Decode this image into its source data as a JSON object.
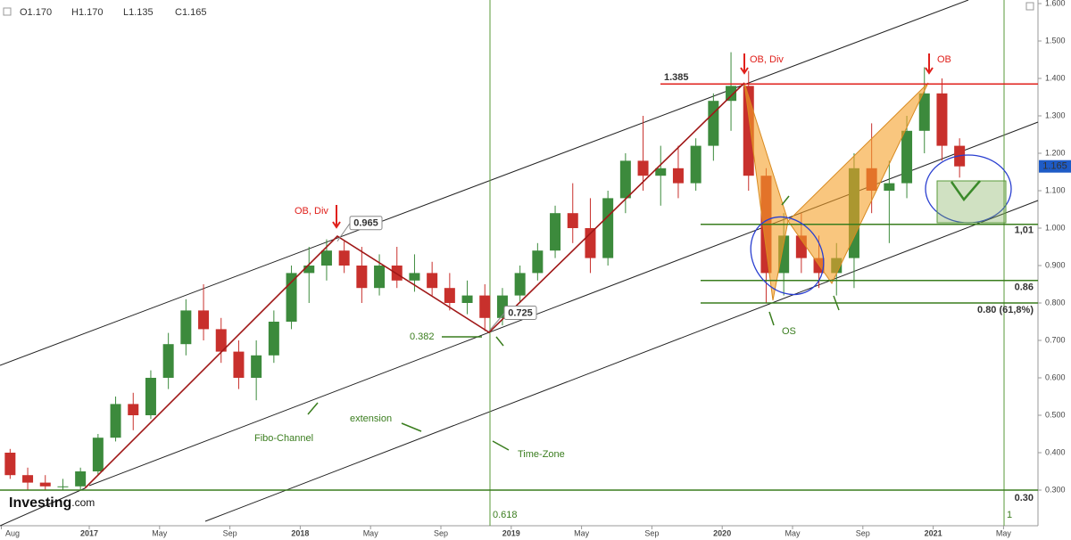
{
  "chart_data": {
    "type": "candlestick",
    "header": [
      "O1.170",
      "H1.170",
      "L1.135",
      "C1.165"
    ],
    "brand": [
      "Investing",
      ".com"
    ],
    "last_price": 1.165,
    "x": [
      "2016-08",
      "2016-09",
      "2016-10",
      "2016-11",
      "2016-12",
      "2017-01",
      "2017-02",
      "2017-03",
      "2017-04",
      "2017-05",
      "2017-06",
      "2017-07",
      "2017-08",
      "2017-09",
      "2017-10",
      "2017-11",
      "2017-12",
      "2018-01",
      "2018-02",
      "2018-03",
      "2018-04",
      "2018-05",
      "2018-06",
      "2018-07",
      "2018-08",
      "2018-09",
      "2018-10",
      "2018-11",
      "2018-12",
      "2019-01",
      "2019-02",
      "2019-03",
      "2019-04",
      "2019-05",
      "2019-06",
      "2019-07",
      "2019-08",
      "2019-09",
      "2019-10",
      "2019-11",
      "2019-12",
      "2020-01",
      "2020-02",
      "2020-03",
      "2020-04",
      "2020-05",
      "2020-06",
      "2020-07",
      "2020-08",
      "2020-09",
      "2020-10",
      "2020-11",
      "2020-12",
      "2021-01",
      "2021-02"
    ],
    "open": [
      0.4,
      0.34,
      0.32,
      0.31,
      0.31,
      0.35,
      0.44,
      0.53,
      0.5,
      0.6,
      0.69,
      0.78,
      0.73,
      0.67,
      0.6,
      0.66,
      0.75,
      0.88,
      0.9,
      0.94,
      0.9,
      0.84,
      0.9,
      0.86,
      0.88,
      0.84,
      0.8,
      0.82,
      0.76,
      0.82,
      0.88,
      0.94,
      1.04,
      1.0,
      0.92,
      1.08,
      1.18,
      1.14,
      1.16,
      1.12,
      1.22,
      1.34,
      1.38,
      1.14,
      0.88,
      0.98,
      0.92,
      0.88,
      0.92,
      1.16,
      1.1,
      1.12,
      1.26,
      1.36,
      1.22
    ],
    "high": [
      0.41,
      0.36,
      0.34,
      0.33,
      0.36,
      0.45,
      0.55,
      0.56,
      0.62,
      0.72,
      0.81,
      0.85,
      0.76,
      0.7,
      0.7,
      0.78,
      0.9,
      0.95,
      0.97,
      0.965,
      0.95,
      0.93,
      0.95,
      0.93,
      0.91,
      0.88,
      0.86,
      0.85,
      0.84,
      0.9,
      0.96,
      1.06,
      1.12,
      1.08,
      1.1,
      1.2,
      1.3,
      1.22,
      1.22,
      1.24,
      1.36,
      1.47,
      1.42,
      1.16,
      1.04,
      1.04,
      0.98,
      0.96,
      1.2,
      1.28,
      1.18,
      1.3,
      1.43,
      1.4,
      1.24
    ],
    "low": [
      0.33,
      0.3,
      0.3,
      0.3,
      0.3,
      0.34,
      0.43,
      0.46,
      0.49,
      0.57,
      0.66,
      0.7,
      0.64,
      0.57,
      0.54,
      0.64,
      0.73,
      0.8,
      0.86,
      0.88,
      0.8,
      0.82,
      0.84,
      0.83,
      0.82,
      0.78,
      0.77,
      0.725,
      0.74,
      0.8,
      0.86,
      0.92,
      0.96,
      0.88,
      0.9,
      1.04,
      1.1,
      1.06,
      1.08,
      1.1,
      1.18,
      1.26,
      1.1,
      0.8,
      0.82,
      0.88,
      0.84,
      0.82,
      0.84,
      1.04,
      0.96,
      1.08,
      1.2,
      1.18,
      1.135
    ],
    "close": [
      0.34,
      0.32,
      0.31,
      0.31,
      0.35,
      0.44,
      0.53,
      0.5,
      0.6,
      0.69,
      0.78,
      0.73,
      0.67,
      0.6,
      0.66,
      0.75,
      0.88,
      0.9,
      0.94,
      0.9,
      0.84,
      0.9,
      0.86,
      0.88,
      0.84,
      0.8,
      0.82,
      0.76,
      0.82,
      0.88,
      0.94,
      1.04,
      1.0,
      0.92,
      1.08,
      1.18,
      1.14,
      1.16,
      1.12,
      1.22,
      1.34,
      1.38,
      1.14,
      0.88,
      0.98,
      0.92,
      0.88,
      0.92,
      1.16,
      1.1,
      1.12,
      1.26,
      1.36,
      1.22,
      1.165
    ],
    "up_color": "#3c8a3c",
    "down_color": "#c8302c",
    "ylim": [
      0.3,
      1.6
    ],
    "yticks": [
      {
        "value": 0.3,
        "label": "0.300"
      },
      {
        "value": 0.4,
        "label": "0.400"
      },
      {
        "value": 0.5,
        "label": "0.500"
      },
      {
        "value": 0.6,
        "label": "0.600"
      },
      {
        "value": 0.7,
        "label": "0.700"
      },
      {
        "value": 0.8,
        "label": "0.800"
      },
      {
        "value": 0.9,
        "label": "0.900"
      },
      {
        "value": 1.0,
        "label": "1.000"
      },
      {
        "value": 1.1,
        "label": "1.100"
      },
      {
        "value": 1.2,
        "label": "1.200"
      },
      {
        "value": 1.3,
        "label": "1.300"
      },
      {
        "value": 1.4,
        "label": "1.400"
      },
      {
        "value": 1.5,
        "label": "1.500"
      },
      {
        "value": 1.6,
        "label": "1.600"
      }
    ],
    "xticks": [
      {
        "value": "2016-08",
        "label": "Aug"
      },
      {
        "value": "2017-01",
        "label": "2017"
      },
      {
        "value": "2017-05",
        "label": "May"
      },
      {
        "value": "2017-09",
        "label": "Sep"
      },
      {
        "value": "2018-01",
        "label": "2018"
      },
      {
        "value": "2018-05",
        "label": "May"
      },
      {
        "value": "2018-09",
        "label": "Sep"
      },
      {
        "value": "2019-01",
        "label": "2019"
      },
      {
        "value": "2019-05",
        "label": "May"
      },
      {
        "value": "2019-09",
        "label": "Sep"
      },
      {
        "value": "2020-01",
        "label": "2020"
      },
      {
        "value": "2020-05",
        "label": "May"
      },
      {
        "value": "2020-09",
        "label": "Sep"
      },
      {
        "value": "2021-01",
        "label": "2021"
      },
      {
        "value": "2021-05",
        "label": "May"
      }
    ],
    "levels": [
      {
        "value": 1.385,
        "label": "1.385"
      },
      {
        "value": 1.01,
        "label": "1,01"
      },
      {
        "value": 0.86,
        "label": "0.86"
      },
      {
        "value": 0.8,
        "label": "0.80 (61,8%)"
      },
      {
        "value": 0.3,
        "label": "0.30"
      }
    ],
    "points": [
      {
        "value": 0.965,
        "label": "0.965"
      },
      {
        "value": 0.725,
        "label": "0.725"
      }
    ],
    "time_zones": [
      "0.618",
      "1"
    ],
    "annotations": [
      "OB, Div",
      "OB, Div",
      "OB",
      "0.382",
      "Fibo-Channel",
      "extension",
      "Time-Zone",
      "OS"
    ]
  }
}
